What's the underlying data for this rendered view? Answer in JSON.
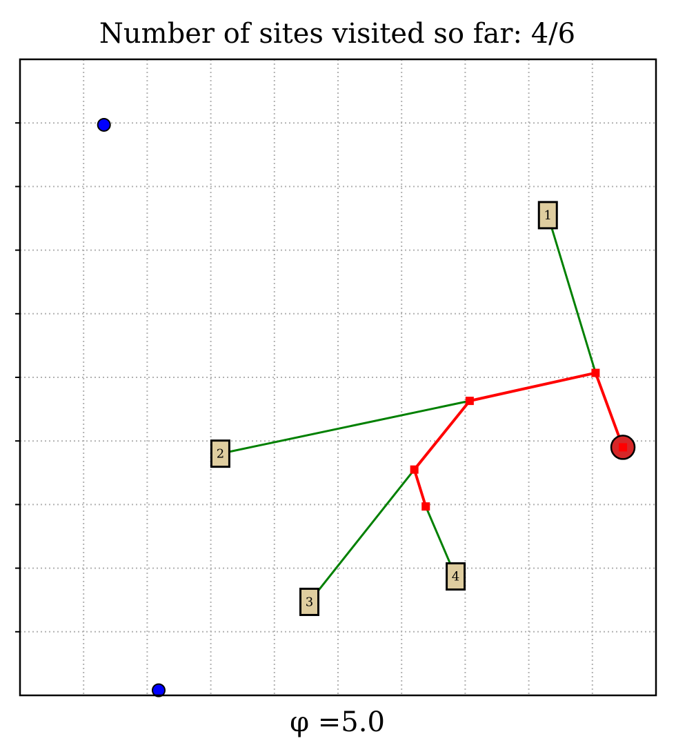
{
  "chart_data": {
    "type": "scatter",
    "title": "Number of sites visited so far: 4/6",
    "xlabel": "φ =5.0",
    "ylabel": "",
    "xlim": [
      0,
      10
    ],
    "ylim": [
      0,
      10
    ],
    "grid": true,
    "ticks": [
      1,
      2,
      3,
      4,
      5,
      6,
      7,
      8,
      9
    ],
    "colors": {
      "tree": "#ff0000",
      "links": "#008000",
      "unvisited": "#0000ff",
      "depot": "#d62728",
      "site_box": "#dfcd9f",
      "grid": "#b0b0b0"
    },
    "depot": {
      "x": 9.48,
      "y": 3.9
    },
    "visited_sites": [
      {
        "label": "1",
        "x": 8.3,
        "y": 7.55
      },
      {
        "label": "2",
        "x": 3.15,
        "y": 3.8
      },
      {
        "label": "3",
        "x": 4.55,
        "y": 1.47
      },
      {
        "label": "4",
        "x": 6.85,
        "y": 1.87
      }
    ],
    "unvisited_sites": [
      {
        "x": 1.32,
        "y": 8.97
      },
      {
        "x": 2.18,
        "y": 0.08
      }
    ],
    "tree_nodes": [
      {
        "x": 9.48,
        "y": 3.9
      },
      {
        "x": 9.05,
        "y": 5.07
      },
      {
        "x": 7.07,
        "y": 4.63
      },
      {
        "x": 6.2,
        "y": 3.55
      },
      {
        "x": 6.38,
        "y": 2.97
      }
    ],
    "tree_edges": [
      [
        0,
        1
      ],
      [
        1,
        2
      ],
      [
        2,
        3
      ],
      [
        3,
        4
      ]
    ],
    "site_links": [
      {
        "site": 0,
        "node": 1
      },
      {
        "site": 1,
        "node": 2
      },
      {
        "site": 2,
        "node": 3
      },
      {
        "site": 3,
        "node": 4
      }
    ]
  }
}
